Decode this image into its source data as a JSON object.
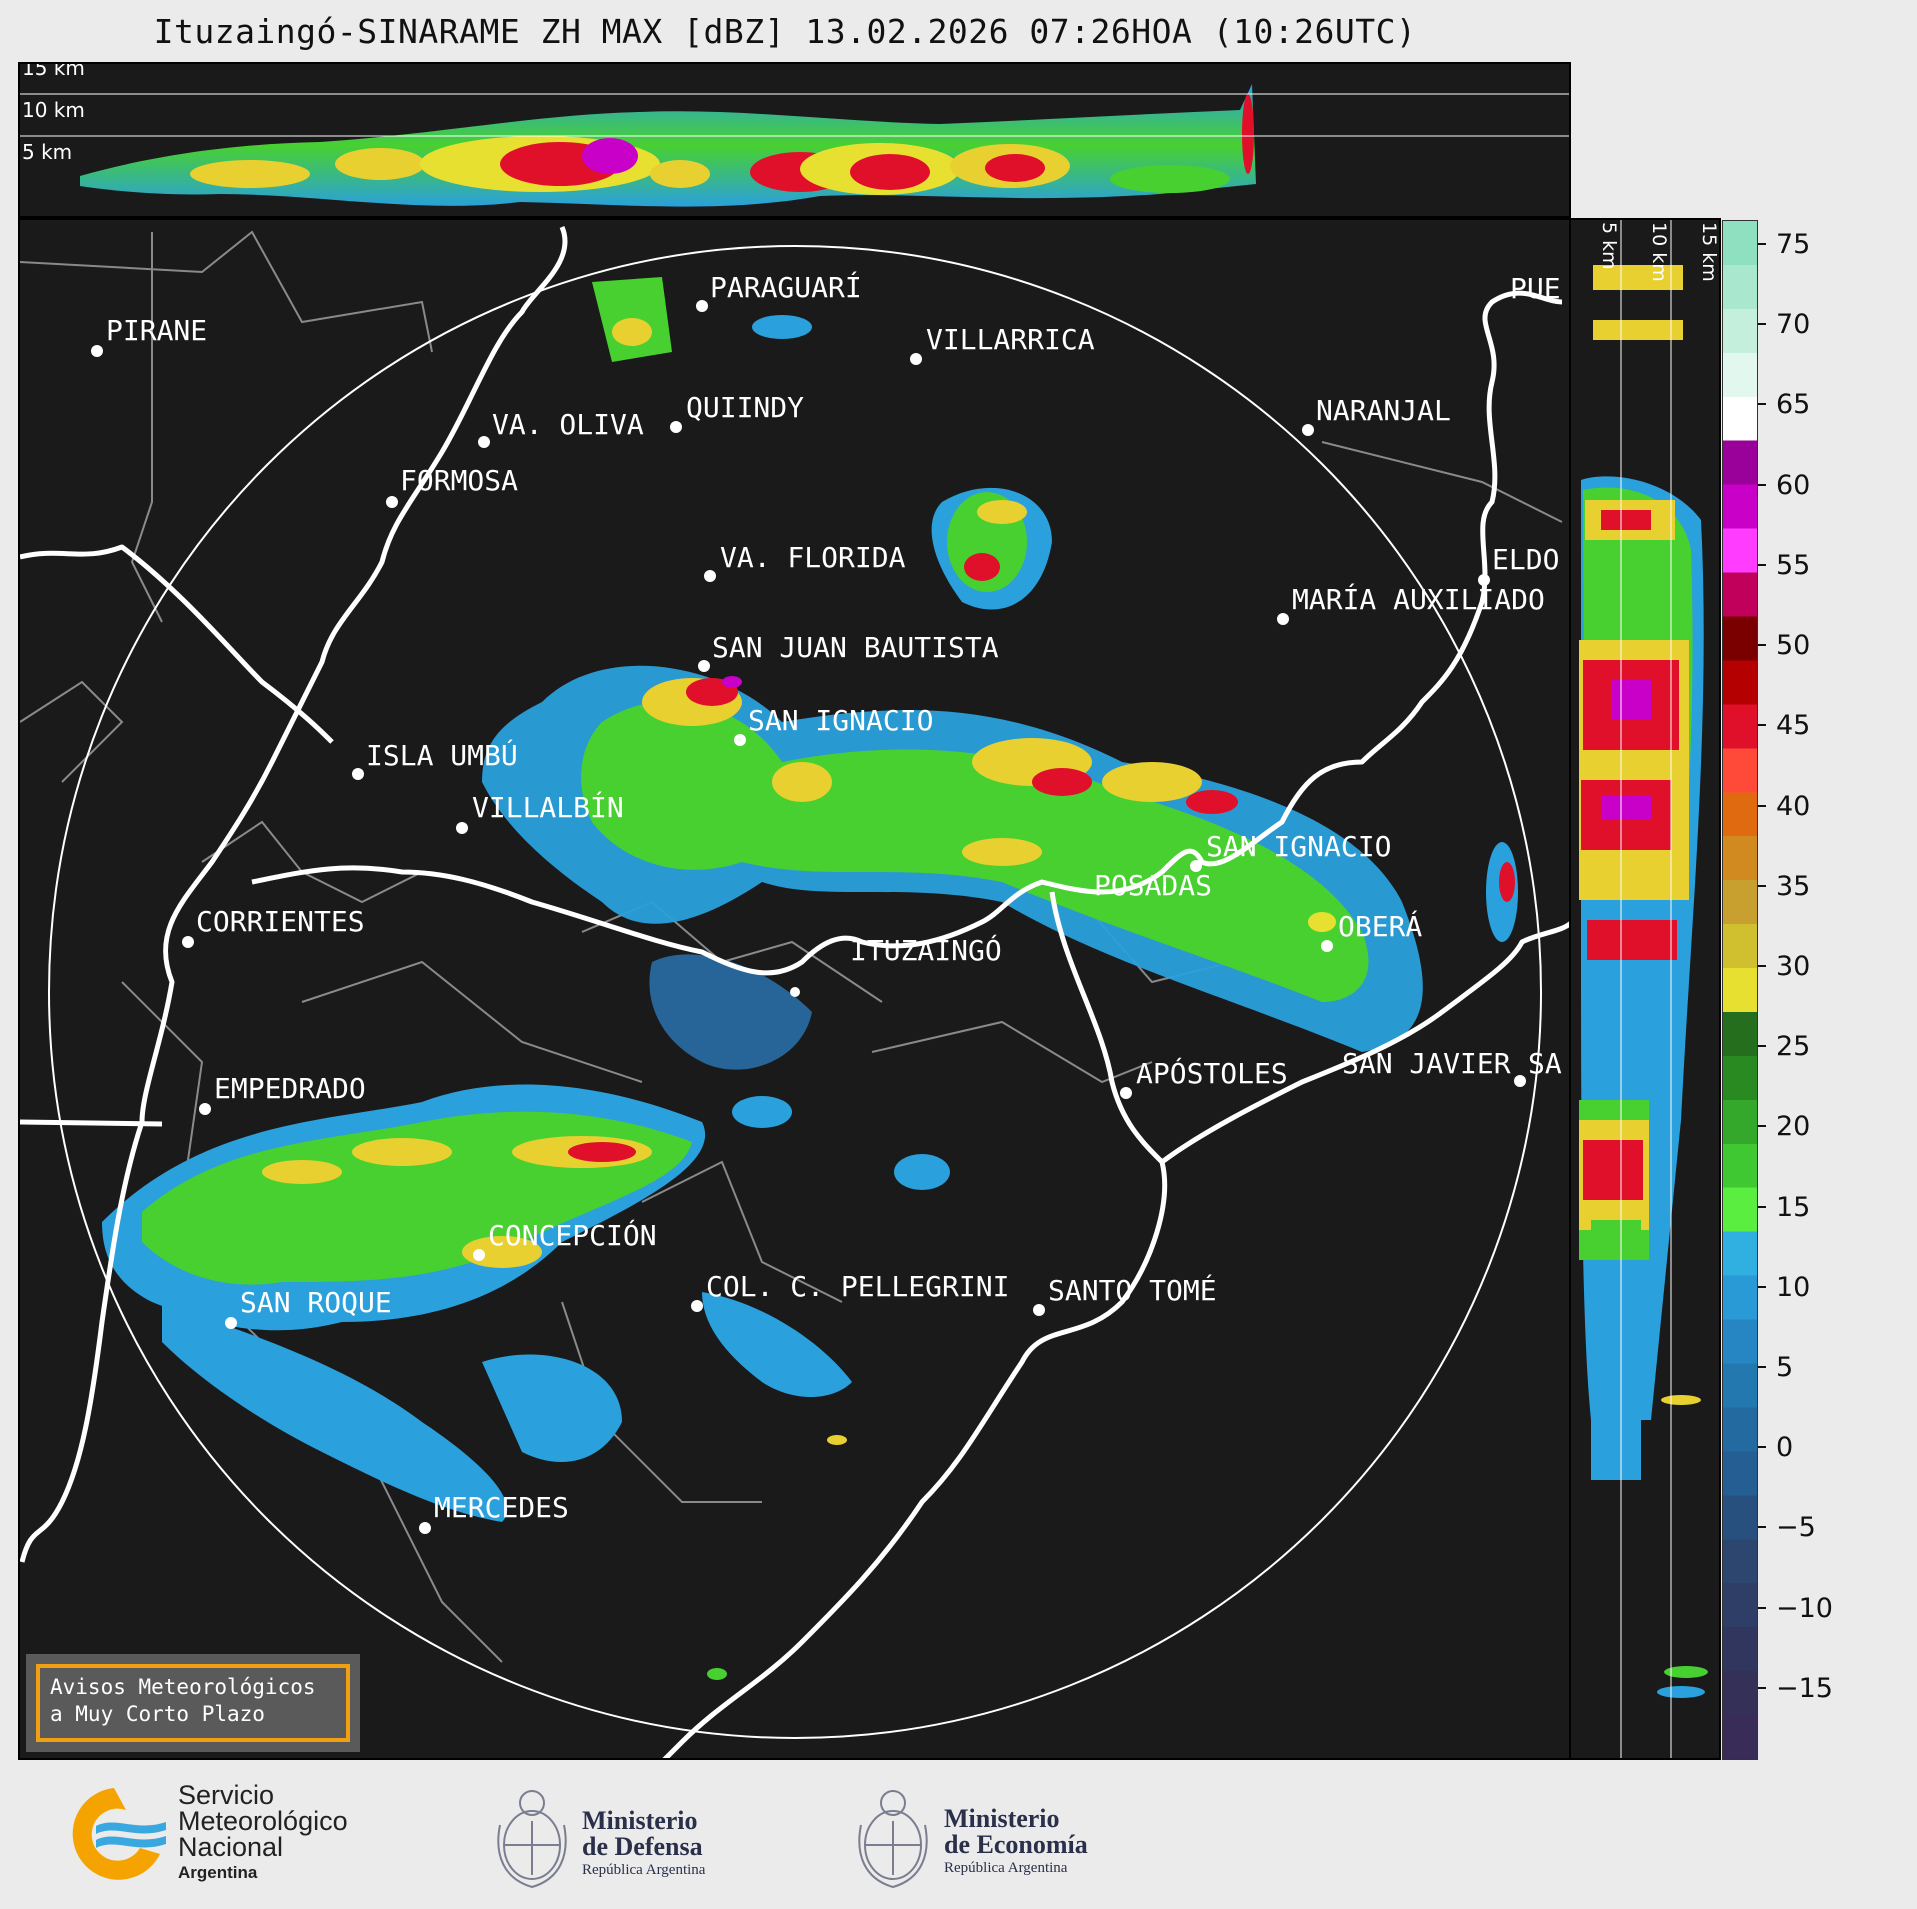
{
  "title": "Ituzaingó-SINARAME ZH MAX [dBZ] 13.02.2026 07:26HOA (10:26UTC)",
  "top_panel": {
    "altitudes": [
      "15 km",
      "10 km",
      "5 km"
    ]
  },
  "side_panel": {
    "altitudes": [
      "5 km",
      "10 km",
      "15 km"
    ]
  },
  "colorbar": {
    "unit": "dBZ",
    "ticks": [
      "75",
      "70",
      "65",
      "60",
      "55",
      "50",
      "45",
      "40",
      "35",
      "30",
      "25",
      "20",
      "15",
      "10",
      "5",
      "0",
      "−5",
      "−10",
      "−15"
    ],
    "colors_top_to_bottom": [
      "#8fe0c0",
      "#a9e8cf",
      "#c4efdd",
      "#e2f7ee",
      "#ffffff",
      "#9a009a",
      "#c800c8",
      "#ff3cff",
      "#c0005a",
      "#7a0000",
      "#b40000",
      "#e0102a",
      "#ff4a3a",
      "#e06a10",
      "#d08a20",
      "#c8a030",
      "#d0c030",
      "#e8e030",
      "#246e1e",
      "#2a8a22",
      "#34a82a",
      "#40c832",
      "#5aee40",
      "#30b0e0",
      "#2a9ad6",
      "#2686c4",
      "#2478b0",
      "#226aa0",
      "#245e92",
      "#28507e",
      "#2c4670",
      "#2e3e66",
      "#30365e",
      "#343058",
      "#3a2c58"
    ]
  },
  "cities": [
    {
      "name": "PARAGUARÍ"
    },
    {
      "name": "PIRANE"
    },
    {
      "name": "VILLARRICA"
    },
    {
      "name": "QUIINDY"
    },
    {
      "name": "VA. OLIVA"
    },
    {
      "name": "NARANJAL"
    },
    {
      "name": "FORMOSA"
    },
    {
      "name": "VA. FLORIDA"
    },
    {
      "name": "ELDO"
    },
    {
      "name": "MARÍA AUXILIADO"
    },
    {
      "name": "SAN JUAN BAUTISTA"
    },
    {
      "name": "SAN IGNACIO"
    },
    {
      "name": "ISLA UMBÚ"
    },
    {
      "name": "VILLALBÍN"
    },
    {
      "name": "SAN IGNACIO"
    },
    {
      "name": "POSADAS"
    },
    {
      "name": "CORRIENTES"
    },
    {
      "name": "ITUZAINGÓ"
    },
    {
      "name": "OBERÁ"
    },
    {
      "name": "EMPEDRADO"
    },
    {
      "name": "APÓSTOLES"
    },
    {
      "name": "SAN JAVIER"
    },
    {
      "name": "SA"
    },
    {
      "name": "CONCEPCIÓN"
    },
    {
      "name": "COL. C. PELLEGRINI"
    },
    {
      "name": "SANTO TOMÉ"
    },
    {
      "name": "SAN ROQUE"
    },
    {
      "name": "MERCEDES"
    },
    {
      "name": "PUE"
    }
  ],
  "legend": {
    "line1": "Avisos Meteorológicos",
    "line2": "a Muy Corto Plazo"
  },
  "footer": {
    "smn": {
      "line1": "Servicio",
      "line2": "Meteorológico",
      "line3": "Nacional",
      "line4": "Argentina"
    },
    "defensa": {
      "line1": "Ministerio",
      "line2": "de Defensa",
      "line3": "República Argentina"
    },
    "economia": {
      "line1": "Ministerio",
      "line2": "de Economía",
      "line3": "República Argentina"
    }
  },
  "colors": {
    "map_background": "#1a1a1a",
    "river": "#ffffff",
    "borders": "#8a8a8a",
    "accent_box": "#f0a012"
  }
}
